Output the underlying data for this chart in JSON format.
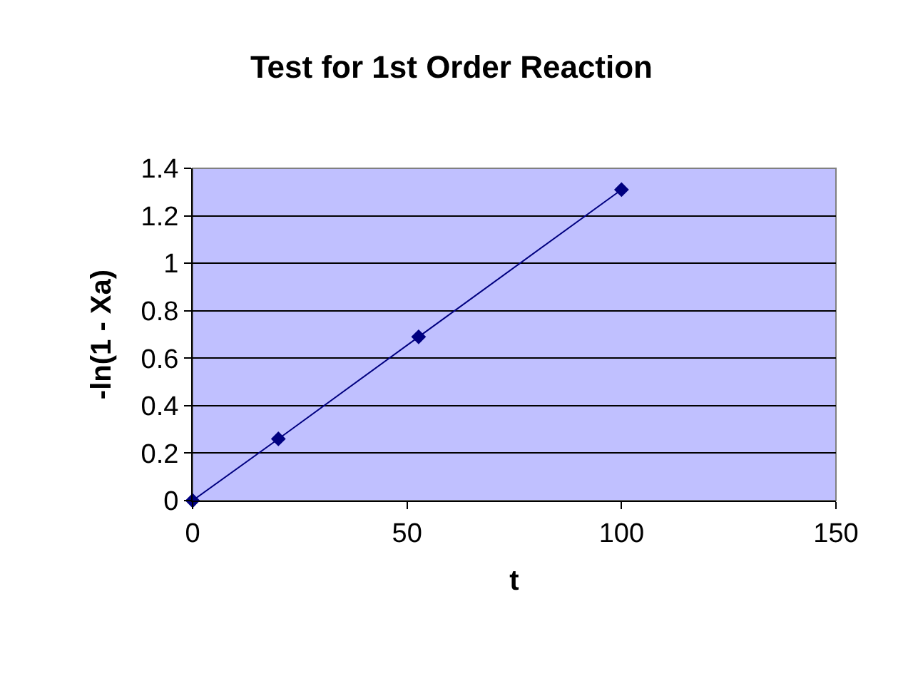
{
  "chart_data": {
    "type": "line",
    "title": "Test for 1st Order Reaction",
    "xlabel": "t",
    "ylabel": "-ln(1 - Xa)",
    "x": [
      0,
      20,
      52.7,
      100
    ],
    "series": [
      {
        "color": "#000080",
        "values": [
          0,
          0.26,
          0.69,
          1.31
        ]
      }
    ],
    "xlim": [
      0,
      150
    ],
    "xticks": [
      0,
      50,
      100,
      150
    ],
    "ylim": [
      0,
      1.4
    ],
    "yticks": [
      0,
      0.2,
      0.4,
      0.6,
      0.8,
      1,
      1.2,
      1.4
    ],
    "grid": "y",
    "marker": "diamond",
    "line_style": "solid"
  }
}
